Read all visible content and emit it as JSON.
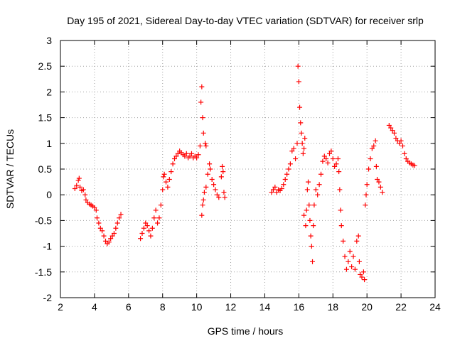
{
  "chart_data": {
    "type": "scatter",
    "title": "Day 195 of 2021, Sidereal Day-to-day VTEC variation (SDTVAR) for receiver srlp",
    "xlabel": "GPS time / hours",
    "ylabel": "SDTVAR / TECUs",
    "xlim": [
      2,
      24
    ],
    "ylim": [
      -2,
      3
    ],
    "x_ticks": [
      "2",
      "4",
      "6",
      "8",
      "10",
      "12",
      "14",
      "16",
      "18",
      "20",
      "22",
      "24"
    ],
    "y_ticks": [
      "-2",
      "-1.5",
      "-1",
      "-0.5",
      "0",
      "0.5",
      "1",
      "1.5",
      "2",
      "2.5",
      "3"
    ],
    "grid": true,
    "marker": "+",
    "series": [
      {
        "name": "srlp",
        "color": "#ff0000",
        "points": [
          [
            2.85,
            0.12
          ],
          [
            2.95,
            0.18
          ],
          [
            3.05,
            0.28
          ],
          [
            3.1,
            0.32
          ],
          [
            3.15,
            0.15
          ],
          [
            3.25,
            0.08
          ],
          [
            3.35,
            0.1
          ],
          [
            3.45,
            0.0
          ],
          [
            3.5,
            -0.1
          ],
          [
            3.6,
            -0.15
          ],
          [
            3.7,
            -0.18
          ],
          [
            3.8,
            -0.2
          ],
          [
            3.9,
            -0.22
          ],
          [
            4.0,
            -0.25
          ],
          [
            4.1,
            -0.3
          ],
          [
            4.15,
            -0.45
          ],
          [
            4.25,
            -0.55
          ],
          [
            4.35,
            -0.65
          ],
          [
            4.45,
            -0.7
          ],
          [
            4.55,
            -0.8
          ],
          [
            4.65,
            -0.9
          ],
          [
            4.75,
            -0.95
          ],
          [
            4.85,
            -0.92
          ],
          [
            4.95,
            -0.85
          ],
          [
            5.05,
            -0.8
          ],
          [
            5.15,
            -0.75
          ],
          [
            5.25,
            -0.65
          ],
          [
            5.35,
            -0.55
          ],
          [
            5.45,
            -0.45
          ],
          [
            5.55,
            -0.38
          ],
          [
            6.7,
            -0.85
          ],
          [
            6.8,
            -0.75
          ],
          [
            6.9,
            -0.65
          ],
          [
            7.0,
            -0.55
          ],
          [
            7.1,
            -0.6
          ],
          [
            7.2,
            -0.7
          ],
          [
            7.3,
            -0.8
          ],
          [
            7.4,
            -0.65
          ],
          [
            7.5,
            -0.45
          ],
          [
            7.6,
            -0.3
          ],
          [
            7.7,
            -0.55
          ],
          [
            7.8,
            -0.45
          ],
          [
            7.9,
            -0.2
          ],
          [
            8.0,
            0.1
          ],
          [
            8.05,
            0.35
          ],
          [
            8.1,
            0.4
          ],
          [
            8.2,
            0.25
          ],
          [
            8.3,
            0.15
          ],
          [
            8.4,
            0.3
          ],
          [
            8.5,
            0.45
          ],
          [
            8.6,
            0.6
          ],
          [
            8.7,
            0.7
          ],
          [
            8.8,
            0.75
          ],
          [
            8.9,
            0.8
          ],
          [
            9.0,
            0.85
          ],
          [
            9.1,
            0.82
          ],
          [
            9.2,
            0.78
          ],
          [
            9.3,
            0.75
          ],
          [
            9.4,
            0.8
          ],
          [
            9.5,
            0.72
          ],
          [
            9.6,
            0.75
          ],
          [
            9.7,
            0.8
          ],
          [
            9.8,
            0.72
          ],
          [
            9.9,
            0.75
          ],
          [
            10.0,
            0.72
          ],
          [
            10.1,
            0.78
          ],
          [
            10.2,
            0.95
          ],
          [
            10.25,
            1.8
          ],
          [
            10.3,
            2.1
          ],
          [
            10.35,
            1.5
          ],
          [
            10.4,
            1.2
          ],
          [
            10.5,
            1.0
          ],
          [
            10.55,
            0.95
          ],
          [
            10.3,
            -0.4
          ],
          [
            10.35,
            -0.2
          ],
          [
            10.4,
            -0.1
          ],
          [
            10.45,
            0.05
          ],
          [
            10.55,
            0.15
          ],
          [
            10.65,
            0.4
          ],
          [
            10.75,
            0.6
          ],
          [
            10.8,
            0.5
          ],
          [
            10.9,
            0.3
          ],
          [
            11.0,
            0.2
          ],
          [
            11.1,
            0.1
          ],
          [
            11.2,
            0.0
          ],
          [
            11.3,
            -0.05
          ],
          [
            11.45,
            0.35
          ],
          [
            11.5,
            0.55
          ],
          [
            11.55,
            0.45
          ],
          [
            11.6,
            0.05
          ],
          [
            11.65,
            -0.05
          ],
          [
            14.4,
            0.05
          ],
          [
            14.5,
            0.1
          ],
          [
            14.6,
            0.15
          ],
          [
            14.7,
            0.05
          ],
          [
            14.8,
            0.1
          ],
          [
            14.9,
            0.08
          ],
          [
            15.0,
            0.12
          ],
          [
            15.1,
            0.2
          ],
          [
            15.2,
            0.3
          ],
          [
            15.3,
            0.4
          ],
          [
            15.4,
            0.5
          ],
          [
            15.5,
            0.6
          ],
          [
            15.6,
            0.85
          ],
          [
            15.7,
            0.9
          ],
          [
            15.8,
            0.7
          ],
          [
            15.9,
            1.0
          ],
          [
            15.95,
            2.5
          ],
          [
            16.0,
            2.2
          ],
          [
            16.05,
            1.7
          ],
          [
            16.1,
            1.4
          ],
          [
            16.15,
            1.2
          ],
          [
            16.2,
            1.0
          ],
          [
            16.25,
            0.8
          ],
          [
            16.3,
            0.9
          ],
          [
            16.35,
            1.1
          ],
          [
            16.3,
            -0.4
          ],
          [
            16.4,
            -0.6
          ],
          [
            16.45,
            -0.3
          ],
          [
            16.5,
            0.1
          ],
          [
            16.55,
            0.25
          ],
          [
            16.6,
            -0.2
          ],
          [
            16.65,
            -0.5
          ],
          [
            16.7,
            -0.8
          ],
          [
            16.75,
            -1.0
          ],
          [
            16.8,
            -1.3
          ],
          [
            16.85,
            -0.6
          ],
          [
            16.9,
            -0.2
          ],
          [
            17.0,
            0.1
          ],
          [
            17.1,
            0.0
          ],
          [
            17.2,
            0.2
          ],
          [
            17.3,
            0.4
          ],
          [
            17.4,
            0.65
          ],
          [
            17.5,
            0.75
          ],
          [
            17.6,
            0.7
          ],
          [
            17.7,
            0.62
          ],
          [
            17.8,
            0.8
          ],
          [
            17.9,
            0.85
          ],
          [
            18.0,
            0.7
          ],
          [
            18.1,
            0.55
          ],
          [
            18.2,
            0.6
          ],
          [
            18.3,
            0.7
          ],
          [
            18.35,
            0.45
          ],
          [
            18.4,
            0.1
          ],
          [
            18.45,
            -0.3
          ],
          [
            18.5,
            -0.6
          ],
          [
            18.6,
            -0.9
          ],
          [
            18.7,
            -1.2
          ],
          [
            18.8,
            -1.45
          ],
          [
            18.9,
            -1.3
          ],
          [
            19.0,
            -1.1
          ],
          [
            19.1,
            -1.4
          ],
          [
            19.2,
            -1.2
          ],
          [
            19.3,
            -1.45
          ],
          [
            19.4,
            -0.9
          ],
          [
            19.5,
            -0.8
          ],
          [
            19.55,
            -1.3
          ],
          [
            19.6,
            -1.55
          ],
          [
            19.7,
            -1.6
          ],
          [
            19.8,
            -1.5
          ],
          [
            19.85,
            -1.65
          ],
          [
            19.9,
            -0.2
          ],
          [
            19.95,
            0.0
          ],
          [
            20.0,
            0.2
          ],
          [
            20.1,
            0.5
          ],
          [
            20.2,
            0.7
          ],
          [
            20.3,
            0.9
          ],
          [
            20.4,
            0.95
          ],
          [
            20.5,
            1.05
          ],
          [
            20.55,
            0.55
          ],
          [
            20.6,
            0.3
          ],
          [
            20.7,
            0.25
          ],
          [
            20.8,
            0.15
          ],
          [
            20.9,
            0.05
          ],
          [
            21.3,
            1.35
          ],
          [
            21.4,
            1.3
          ],
          [
            21.5,
            1.25
          ],
          [
            21.6,
            1.2
          ],
          [
            21.7,
            1.1
          ],
          [
            21.8,
            1.05
          ],
          [
            21.9,
            1.0
          ],
          [
            22.0,
            1.05
          ],
          [
            22.1,
            0.95
          ],
          [
            22.2,
            0.8
          ],
          [
            22.3,
            0.7
          ],
          [
            22.4,
            0.65
          ],
          [
            22.5,
            0.62
          ],
          [
            22.6,
            0.6
          ],
          [
            22.7,
            0.58
          ],
          [
            22.8,
            0.57
          ]
        ]
      }
    ]
  }
}
